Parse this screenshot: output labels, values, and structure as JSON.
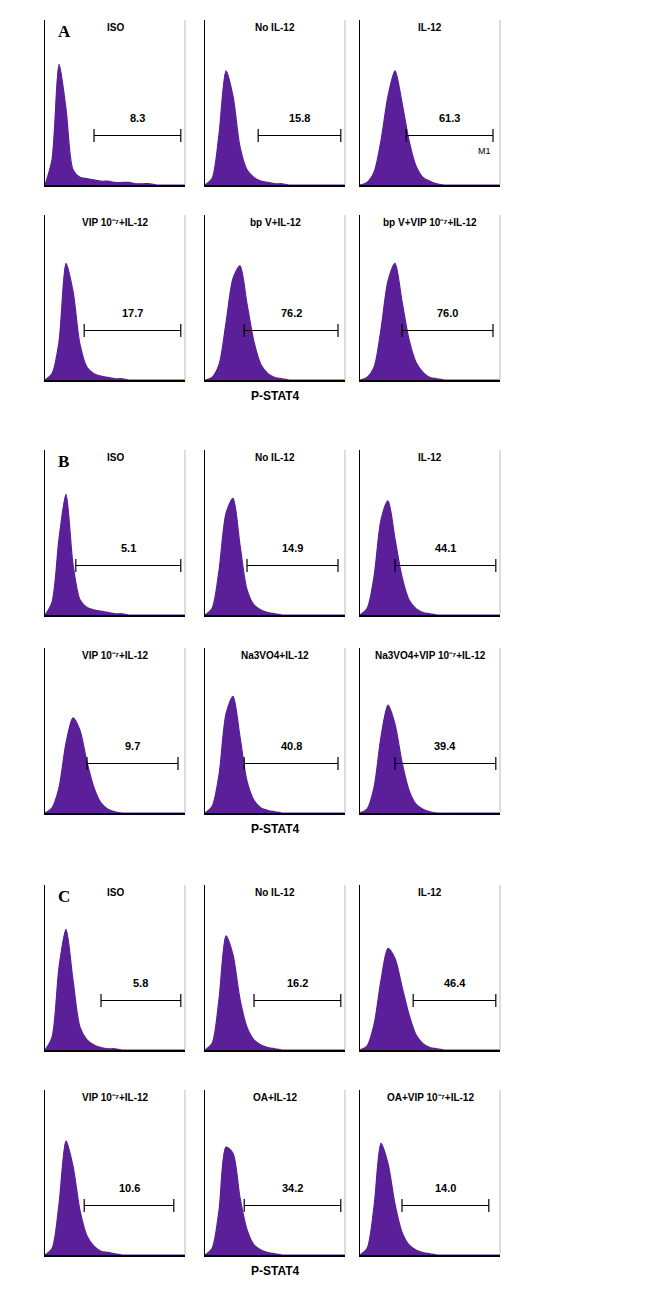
{
  "chart_data": [
    {
      "type": "area",
      "panel": "A",
      "title": "ISO",
      "color": "#5a1f99",
      "tick_labels": false,
      "xlim": [
        0,
        100
      ],
      "ylim": [
        0,
        130
      ],
      "x": [
        0,
        5,
        10,
        15,
        20,
        25,
        30,
        35,
        40,
        45,
        50,
        55,
        60,
        65,
        70,
        75,
        80,
        85,
        90,
        95,
        100
      ],
      "values": [
        0,
        20,
        95,
        60,
        12,
        6,
        5,
        4,
        3,
        3,
        2,
        2,
        2,
        1,
        1,
        1,
        0,
        0,
        0,
        0,
        0
      ],
      "gate": {
        "from": 35,
        "to": 97,
        "value": 8.3
      }
    },
    {
      "type": "area",
      "title": "No IL-12",
      "color": "#5a1f99",
      "tick_labels": false,
      "xlim": [
        0,
        100
      ],
      "ylim": [
        0,
        130
      ],
      "x": [
        0,
        5,
        10,
        15,
        20,
        25,
        30,
        35,
        40,
        45,
        50,
        55,
        60,
        65,
        70,
        75,
        80,
        85,
        90,
        95,
        100
      ],
      "values": [
        0,
        5,
        40,
        90,
        70,
        30,
        12,
        6,
        3,
        2,
        1,
        1,
        0,
        0,
        0,
        0,
        0,
        0,
        0,
        0,
        0
      ],
      "gate": {
        "from": 38,
        "to": 97,
        "value": 15.8
      }
    },
    {
      "type": "area",
      "title": "IL-12",
      "color": "#5a1f99",
      "tick_labels": false,
      "xlim": [
        0,
        100
      ],
      "ylim": [
        0,
        130
      ],
      "x": [
        0,
        5,
        10,
        15,
        20,
        25,
        30,
        35,
        40,
        45,
        50,
        55,
        60,
        65,
        70,
        75,
        80,
        85,
        90,
        95,
        100
      ],
      "values": [
        0,
        2,
        10,
        35,
        70,
        90,
        65,
        35,
        15,
        6,
        3,
        1,
        0,
        0,
        0,
        0,
        0,
        0,
        0,
        0,
        0
      ],
      "gate": {
        "from": 33,
        "to": 95,
        "value": 61.3,
        "name": "M1"
      }
    },
    {
      "type": "area",
      "title": "VIP 10⁻⁷+IL-12",
      "color": "#5a1f99",
      "tick_labels": false,
      "xlim": [
        0,
        100
      ],
      "ylim": [
        0,
        130
      ],
      "x": [
        0,
        5,
        10,
        15,
        20,
        25,
        30,
        35,
        40,
        45,
        50,
        55,
        60,
        65,
        70,
        75,
        80,
        85,
        90,
        95,
        100
      ],
      "values": [
        0,
        5,
        30,
        92,
        70,
        28,
        10,
        5,
        3,
        2,
        1,
        1,
        0,
        0,
        0,
        0,
        0,
        0,
        0,
        0,
        0
      ],
      "gate": {
        "from": 28,
        "to": 97,
        "value": 17.7
      }
    },
    {
      "type": "area",
      "title": "bp V+IL-12",
      "color": "#5a1f99",
      "tick_labels": false,
      "xlim": [
        0,
        100
      ],
      "ylim": [
        0,
        130
      ],
      "x": [
        0,
        5,
        10,
        15,
        20,
        25,
        30,
        35,
        40,
        45,
        50,
        55,
        60,
        65,
        70,
        75,
        80,
        85,
        90,
        95,
        100
      ],
      "values": [
        0,
        2,
        12,
        45,
        80,
        90,
        60,
        30,
        12,
        5,
        2,
        1,
        0,
        0,
        0,
        0,
        0,
        0,
        0,
        0,
        0
      ],
      "gate": {
        "from": 28,
        "to": 95,
        "value": 76.2
      },
      "xlabel": "P-STAT4"
    },
    {
      "type": "area",
      "title": "bp V+VIP 10⁻⁷+IL-12",
      "color": "#5a1f99",
      "tick_labels": false,
      "xlim": [
        0,
        100
      ],
      "ylim": [
        0,
        130
      ],
      "x": [
        0,
        5,
        10,
        15,
        20,
        25,
        30,
        35,
        40,
        45,
        50,
        55,
        60,
        65,
        70,
        75,
        80,
        85,
        90,
        95,
        100
      ],
      "values": [
        0,
        2,
        10,
        40,
        78,
        92,
        62,
        32,
        14,
        6,
        2,
        1,
        0,
        0,
        0,
        0,
        0,
        0,
        0,
        0,
        0
      ],
      "gate": {
        "from": 30,
        "to": 95,
        "value": 76,
        "label": "76.0"
      }
    },
    {
      "type": "area",
      "panel": "B",
      "title": "ISO",
      "color": "#5a1f99",
      "tick_labels": false,
      "xlim": [
        0,
        100
      ],
      "ylim": [
        0,
        130
      ],
      "x": [
        0,
        5,
        10,
        15,
        20,
        25,
        30,
        35,
        40,
        45,
        50,
        55,
        60,
        65,
        70,
        75,
        80,
        85,
        90,
        95,
        100
      ],
      "values": [
        0,
        10,
        60,
        95,
        40,
        12,
        6,
        4,
        3,
        2,
        1,
        1,
        0,
        0,
        0,
        0,
        0,
        0,
        0,
        0,
        0
      ],
      "gate": {
        "from": 22,
        "to": 97,
        "value": 5.1
      }
    },
    {
      "type": "area",
      "title": "No IL-12",
      "color": "#5a1f99",
      "tick_labels": false,
      "xlim": [
        0,
        100
      ],
      "ylim": [
        0,
        130
      ],
      "x": [
        0,
        5,
        10,
        15,
        20,
        25,
        30,
        35,
        40,
        45,
        50,
        55,
        60,
        65,
        70,
        75,
        80,
        85,
        90,
        95,
        100
      ],
      "values": [
        0,
        5,
        35,
        80,
        92,
        55,
        20,
        8,
        4,
        2,
        1,
        0,
        0,
        0,
        0,
        0,
        0,
        0,
        0,
        0,
        0
      ],
      "gate": {
        "from": 30,
        "to": 95,
        "value": 14.9
      }
    },
    {
      "type": "area",
      "title": "IL-12",
      "color": "#5a1f99",
      "tick_labels": false,
      "xlim": [
        0,
        100
      ],
      "ylim": [
        0,
        130
      ],
      "x": [
        0,
        5,
        10,
        15,
        20,
        25,
        30,
        35,
        40,
        45,
        50,
        55,
        60,
        65,
        70,
        75,
        80,
        85,
        90,
        95,
        100
      ],
      "values": [
        0,
        5,
        30,
        75,
        90,
        60,
        30,
        12,
        5,
        2,
        1,
        0,
        0,
        0,
        0,
        0,
        0,
        0,
        0,
        0,
        0
      ],
      "gate": {
        "from": 25,
        "to": 97,
        "value": 44.1
      }
    },
    {
      "type": "area",
      "title": "VIP 10⁻⁷+IL-12",
      "color": "#5a1f99",
      "tick_labels": false,
      "xlim": [
        0,
        100
      ],
      "ylim": [
        0,
        130
      ],
      "x": [
        0,
        5,
        10,
        15,
        20,
        25,
        30,
        35,
        40,
        45,
        50,
        55,
        60,
        65,
        70,
        75,
        80,
        85,
        90,
        95,
        100
      ],
      "values": [
        0,
        4,
        20,
        55,
        75,
        65,
        40,
        20,
        8,
        3,
        1,
        0,
        0,
        0,
        0,
        0,
        0,
        0,
        0,
        0,
        0
      ],
      "gate": {
        "from": 30,
        "to": 95,
        "value": 9.7
      }
    },
    {
      "type": "area",
      "title": "Na3VO4+IL-12",
      "color": "#5a1f99",
      "tick_labels": false,
      "xlim": [
        0,
        100
      ],
      "ylim": [
        0,
        130
      ],
      "x": [
        0,
        5,
        10,
        15,
        20,
        25,
        30,
        35,
        40,
        45,
        50,
        55,
        60,
        65,
        70,
        75,
        80,
        85,
        90,
        95,
        100
      ],
      "values": [
        0,
        5,
        30,
        78,
        92,
        60,
        25,
        10,
        4,
        2,
        1,
        0,
        0,
        0,
        0,
        0,
        0,
        0,
        0,
        0,
        0
      ],
      "gate": {
        "from": 28,
        "to": 95,
        "value": 40.8
      },
      "xlabel": "P-STAT4"
    },
    {
      "type": "area",
      "title": "Na3VO4+VIP 10⁻⁷+IL-12",
      "color": "#5a1f99",
      "tick_labels": false,
      "xlim": [
        0,
        100
      ],
      "ylim": [
        0,
        130
      ],
      "x": [
        0,
        5,
        10,
        15,
        20,
        25,
        30,
        35,
        40,
        45,
        50,
        55,
        60,
        65,
        70,
        75,
        80,
        85,
        90,
        95,
        100
      ],
      "values": [
        0,
        3,
        20,
        60,
        85,
        70,
        40,
        18,
        7,
        3,
        1,
        0,
        0,
        0,
        0,
        0,
        0,
        0,
        0,
        0,
        0
      ],
      "gate": {
        "from": 25,
        "to": 97,
        "value": 39.4
      }
    },
    {
      "type": "area",
      "panel": "C",
      "title": "ISO",
      "color": "#5a1f99",
      "tick_labels": false,
      "xlim": [
        0,
        100
      ],
      "ylim": [
        0,
        130
      ],
      "x": [
        0,
        5,
        10,
        15,
        20,
        25,
        30,
        35,
        40,
        45,
        50,
        55,
        60,
        65,
        70,
        75,
        80,
        85,
        90,
        95,
        100
      ],
      "values": [
        0,
        10,
        65,
        95,
        55,
        18,
        8,
        4,
        2,
        1,
        1,
        0,
        0,
        0,
        0,
        0,
        0,
        0,
        0,
        0,
        0
      ],
      "gate": {
        "from": 40,
        "to": 97,
        "value": 5.8
      }
    },
    {
      "type": "area",
      "title": "No IL-12",
      "color": "#5a1f99",
      "tick_labels": false,
      "xlim": [
        0,
        100
      ],
      "ylim": [
        0,
        130
      ],
      "x": [
        0,
        5,
        10,
        15,
        20,
        25,
        30,
        35,
        40,
        45,
        50,
        55,
        60,
        65,
        70,
        75,
        80,
        85,
        90,
        95,
        100
      ],
      "values": [
        0,
        5,
        40,
        90,
        75,
        40,
        18,
        8,
        4,
        2,
        1,
        0,
        0,
        0,
        0,
        0,
        0,
        0,
        0,
        0,
        0
      ],
      "gate": {
        "from": 35,
        "to": 97,
        "value": 16.2
      }
    },
    {
      "type": "area",
      "title": "IL-12",
      "color": "#5a1f99",
      "tick_labels": false,
      "xlim": [
        0,
        100
      ],
      "ylim": [
        0,
        130
      ],
      "x": [
        0,
        5,
        10,
        15,
        20,
        25,
        30,
        35,
        40,
        45,
        50,
        55,
        60,
        65,
        70,
        75,
        80,
        85,
        90,
        95,
        100
      ],
      "values": [
        0,
        3,
        20,
        55,
        80,
        72,
        50,
        28,
        12,
        5,
        2,
        1,
        0,
        0,
        0,
        0,
        0,
        0,
        0,
        0,
        0
      ],
      "gate": {
        "from": 38,
        "to": 97,
        "value": 46.4
      }
    },
    {
      "type": "area",
      "title": "VIP 10⁻⁷+IL-12",
      "color": "#5a1f99",
      "tick_labels": false,
      "xlim": [
        0,
        100
      ],
      "ylim": [
        0,
        130
      ],
      "x": [
        0,
        5,
        10,
        15,
        20,
        25,
        30,
        35,
        40,
        45,
        50,
        55,
        60,
        65,
        70,
        75,
        80,
        85,
        90,
        95,
        100
      ],
      "values": [
        0,
        5,
        40,
        90,
        70,
        35,
        15,
        7,
        3,
        2,
        1,
        0,
        0,
        0,
        0,
        0,
        0,
        0,
        0,
        0,
        0
      ],
      "gate": {
        "from": 28,
        "to": 92,
        "value": 10.6
      }
    },
    {
      "type": "area",
      "title": "OA+IL-12",
      "color": "#5a1f99",
      "tick_labels": false,
      "xlim": [
        0,
        100
      ],
      "ylim": [
        0,
        130
      ],
      "x": [
        0,
        5,
        10,
        15,
        20,
        25,
        30,
        35,
        40,
        45,
        50,
        55,
        60,
        65,
        70,
        75,
        80,
        85,
        90,
        95,
        100
      ],
      "values": [
        0,
        5,
        35,
        85,
        80,
        45,
        20,
        8,
        4,
        2,
        1,
        0,
        0,
        0,
        0,
        0,
        0,
        0,
        0,
        0,
        0
      ],
      "gate": {
        "from": 28,
        "to": 97,
        "value": 34.2
      },
      "xlabel": "P-STAT4"
    },
    {
      "type": "area",
      "title": "OA+VIP 10⁻⁷+IL-12",
      "color": "#5a1f99",
      "tick_labels": false,
      "xlim": [
        0,
        100
      ],
      "ylim": [
        0,
        130
      ],
      "x": [
        0,
        5,
        10,
        15,
        20,
        25,
        30,
        35,
        40,
        45,
        50,
        55,
        60,
        65,
        70,
        75,
        80,
        85,
        90,
        95,
        100
      ],
      "values": [
        0,
        5,
        38,
        88,
        72,
        40,
        18,
        8,
        4,
        2,
        1,
        0,
        0,
        0,
        0,
        0,
        0,
        0,
        0,
        0,
        0
      ],
      "gate": {
        "from": 30,
        "to": 92,
        "value": 14,
        "label": "14.0"
      }
    }
  ]
}
